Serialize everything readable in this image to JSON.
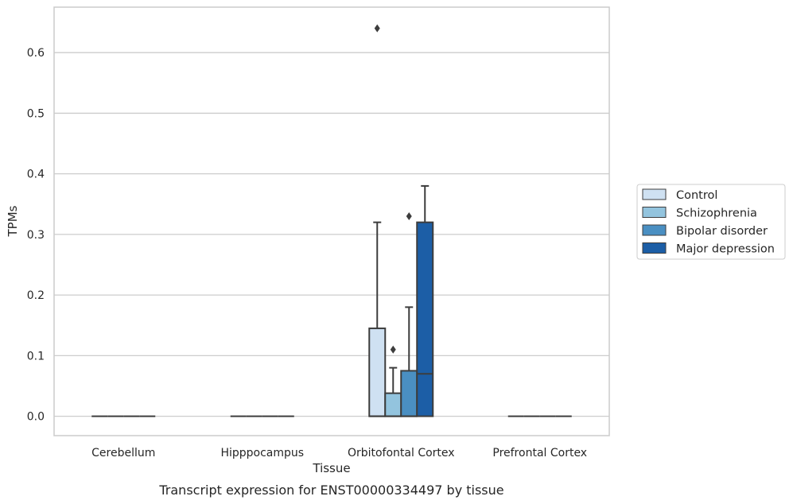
{
  "chart_data": {
    "type": "box",
    "xlabel": "Tissue",
    "ylabel": "TPMs",
    "caption": "Transcript expression for ENST00000334497 by tissue",
    "ylim": [
      -0.032,
      0.675
    ],
    "yticks": [
      "0.0",
      "0.1",
      "0.2",
      "0.3",
      "0.4",
      "0.5",
      "0.6"
    ],
    "ytick_values": [
      0.0,
      0.1,
      0.2,
      0.3,
      0.4,
      0.5,
      0.6
    ],
    "grid": true,
    "legend_position": "right",
    "categories": [
      "Cerebellum",
      "Hipppocampus",
      "Orbitofontal Cortex",
      "Prefrontal Cortex"
    ],
    "series": [
      {
        "name": "Control",
        "color": "#cfe1f2",
        "boxes": [
          {
            "q1": 0,
            "median": 0,
            "q3": 0,
            "whisker_low": 0,
            "whisker_high": 0,
            "outliers": []
          },
          {
            "q1": 0,
            "median": 0,
            "q3": 0,
            "whisker_low": 0,
            "whisker_high": 0,
            "outliers": []
          },
          {
            "q1": 0,
            "median": 0,
            "q3": 0.145,
            "whisker_low": 0,
            "whisker_high": 0.32,
            "outliers": [
              0.64
            ]
          },
          {
            "q1": 0,
            "median": 0,
            "q3": 0,
            "whisker_low": 0,
            "whisker_high": 0,
            "outliers": []
          }
        ]
      },
      {
        "name": "Schizophrenia",
        "color": "#93c4de",
        "boxes": [
          {
            "q1": 0,
            "median": 0,
            "q3": 0,
            "whisker_low": 0,
            "whisker_high": 0,
            "outliers": []
          },
          {
            "q1": 0,
            "median": 0,
            "q3": 0,
            "whisker_low": 0,
            "whisker_high": 0,
            "outliers": []
          },
          {
            "q1": 0,
            "median": 0,
            "q3": 0.038,
            "whisker_low": 0,
            "whisker_high": 0.08,
            "outliers": [
              0.11
            ]
          },
          {
            "q1": 0,
            "median": 0,
            "q3": 0,
            "whisker_low": 0,
            "whisker_high": 0,
            "outliers": []
          }
        ]
      },
      {
        "name": "Bipolar disorder",
        "color": "#4a8fc2",
        "boxes": [
          {
            "q1": 0,
            "median": 0,
            "q3": 0,
            "whisker_low": 0,
            "whisker_high": 0,
            "outliers": []
          },
          {
            "q1": 0,
            "median": 0,
            "q3": 0,
            "whisker_low": 0,
            "whisker_high": 0,
            "outliers": []
          },
          {
            "q1": 0,
            "median": 0,
            "q3": 0.075,
            "whisker_low": 0,
            "whisker_high": 0.18,
            "outliers": [
              0.33
            ]
          },
          {
            "q1": 0,
            "median": 0,
            "q3": 0,
            "whisker_low": 0,
            "whisker_high": 0,
            "outliers": []
          }
        ]
      },
      {
        "name": "Major depression",
        "color": "#1c5ea6",
        "boxes": [
          {
            "q1": 0,
            "median": 0,
            "q3": 0,
            "whisker_low": 0,
            "whisker_high": 0,
            "outliers": []
          },
          {
            "q1": 0,
            "median": 0,
            "q3": 0,
            "whisker_low": 0,
            "whisker_high": 0,
            "outliers": []
          },
          {
            "q1": 0,
            "median": 0.07,
            "q3": 0.32,
            "whisker_low": 0,
            "whisker_high": 0.38,
            "outliers": []
          },
          {
            "q1": 0,
            "median": 0,
            "q3": 0,
            "whisker_low": 0,
            "whisker_high": 0,
            "outliers": []
          }
        ]
      }
    ]
  }
}
